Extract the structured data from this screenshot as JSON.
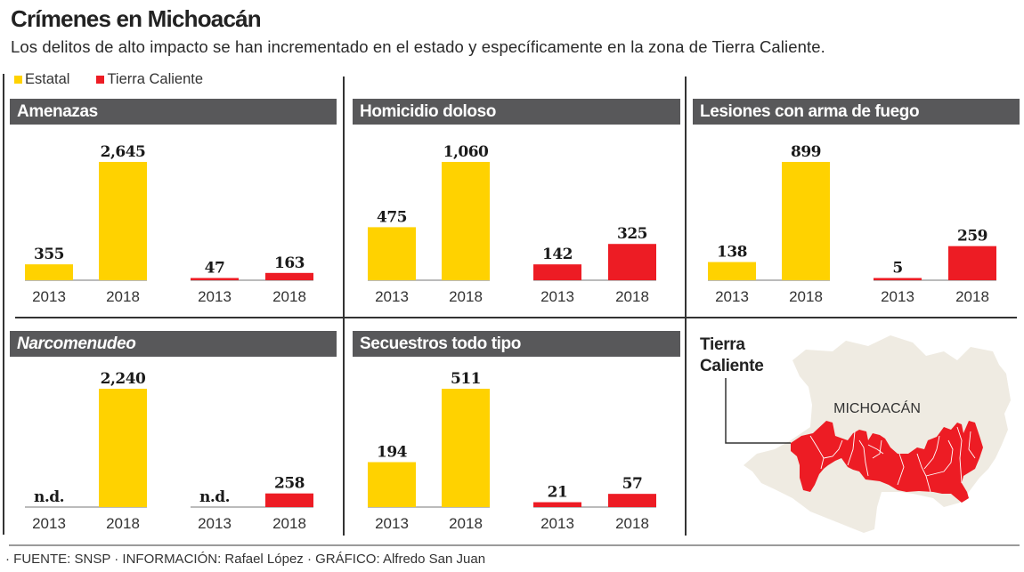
{
  "header": {
    "title": "Crímenes en Michoacán",
    "subtitle": "Los delitos de alto impacto se han incrementado en el estado y específicamente en la zona de Tierra Caliente."
  },
  "legend": [
    {
      "label": "Estatal",
      "color": "#ffd200"
    },
    {
      "label": "Tierra Caliente",
      "color": "#ed1c24"
    }
  ],
  "map": {
    "label_line1": "Tierra",
    "label_line2": "Caliente",
    "state_name": "MICHOACÁN",
    "state_color": "#efebe2",
    "region_color": "#ed1c24"
  },
  "footer": "· FUENTE: SNSP · INFORMACIÓN: Rafael López · GRÁFICO: Alfredo San Juan",
  "chart_data": [
    {
      "type": "bar",
      "title": "Amenazas",
      "categories": [
        "2013",
        "2018",
        "2013",
        "2018"
      ],
      "series": [
        {
          "name": "Estatal",
          "values": [
            355,
            2645
          ],
          "labels": [
            "355",
            "2,645"
          ]
        },
        {
          "name": "Tierra Caliente",
          "values": [
            47,
            163
          ],
          "labels": [
            "47",
            "163"
          ]
        }
      ]
    },
    {
      "type": "bar",
      "title": "Homicidio doloso",
      "categories": [
        "2013",
        "2018",
        "2013",
        "2018"
      ],
      "series": [
        {
          "name": "Estatal",
          "values": [
            475,
            1060
          ],
          "labels": [
            "475",
            "1,060"
          ]
        },
        {
          "name": "Tierra Caliente",
          "values": [
            142,
            325
          ],
          "labels": [
            "142",
            "325"
          ]
        }
      ]
    },
    {
      "type": "bar",
      "title": "Lesiones con arma de fuego",
      "categories": [
        "2013",
        "2018",
        "2013",
        "2018"
      ],
      "series": [
        {
          "name": "Estatal",
          "values": [
            138,
            899
          ],
          "labels": [
            "138",
            "899"
          ]
        },
        {
          "name": "Tierra Caliente",
          "values": [
            5,
            259
          ],
          "labels": [
            "5",
            "259"
          ]
        }
      ]
    },
    {
      "type": "bar",
      "title": "Narcomenudeo",
      "italic": true,
      "categories": [
        "2013",
        "2018",
        "2013",
        "2018"
      ],
      "series": [
        {
          "name": "Estatal",
          "values": [
            null,
            2240
          ],
          "labels": [
            "n.d.",
            "2,240"
          ]
        },
        {
          "name": "Tierra Caliente",
          "values": [
            null,
            258
          ],
          "labels": [
            "n.d.",
            "258"
          ]
        }
      ]
    },
    {
      "type": "bar",
      "title": "Secuestros todo tipo",
      "categories": [
        "2013",
        "2018",
        "2013",
        "2018"
      ],
      "series": [
        {
          "name": "Estatal",
          "values": [
            194,
            511
          ],
          "labels": [
            "194",
            "511"
          ]
        },
        {
          "name": "Tierra Caliente",
          "values": [
            21,
            57
          ],
          "labels": [
            "21",
            "57"
          ]
        }
      ]
    }
  ]
}
